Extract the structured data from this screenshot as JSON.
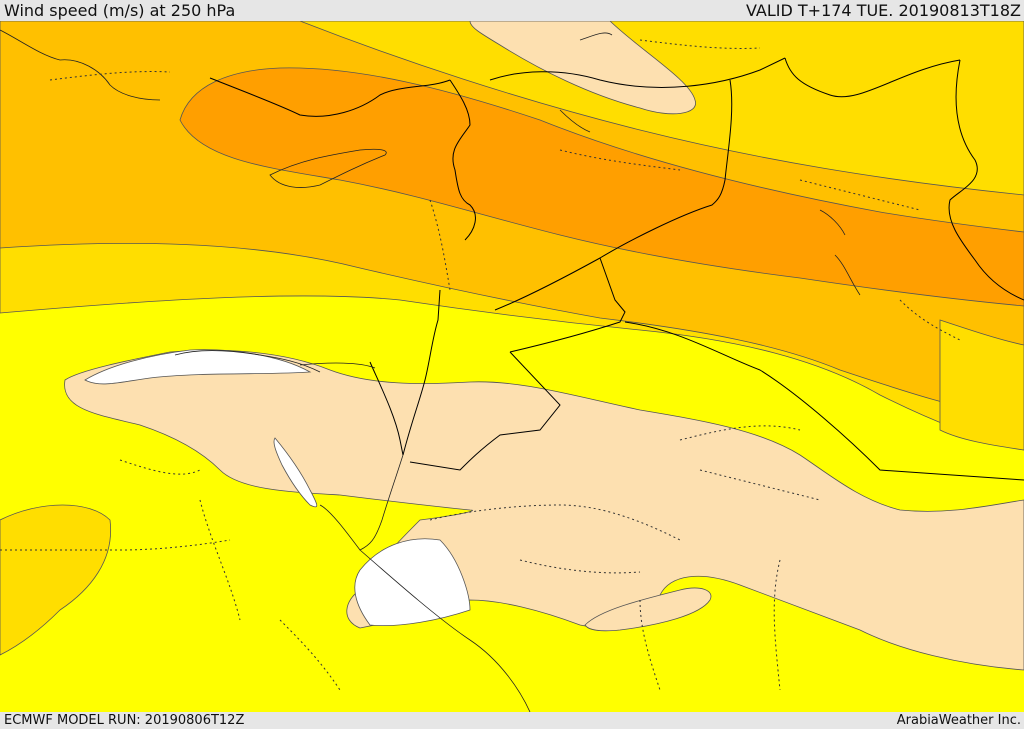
{
  "header": {
    "title": "Wind speed (m/s) at 250 hPa",
    "valid": "VALID T+174 TUE. 20190813T18Z"
  },
  "footer": {
    "model_run": "ECMWF MODEL RUN: 20190806T12Z",
    "credit": "ArabiaWeather Inc."
  },
  "colors": {
    "below": "#ffffff",
    "low": "#fde0b0",
    "mid": "#ffff00",
    "upper": "#ffde00",
    "high": "#ffc000",
    "jet": "#ff9f00",
    "border": "#000000",
    "contour": "#555555"
  }
}
